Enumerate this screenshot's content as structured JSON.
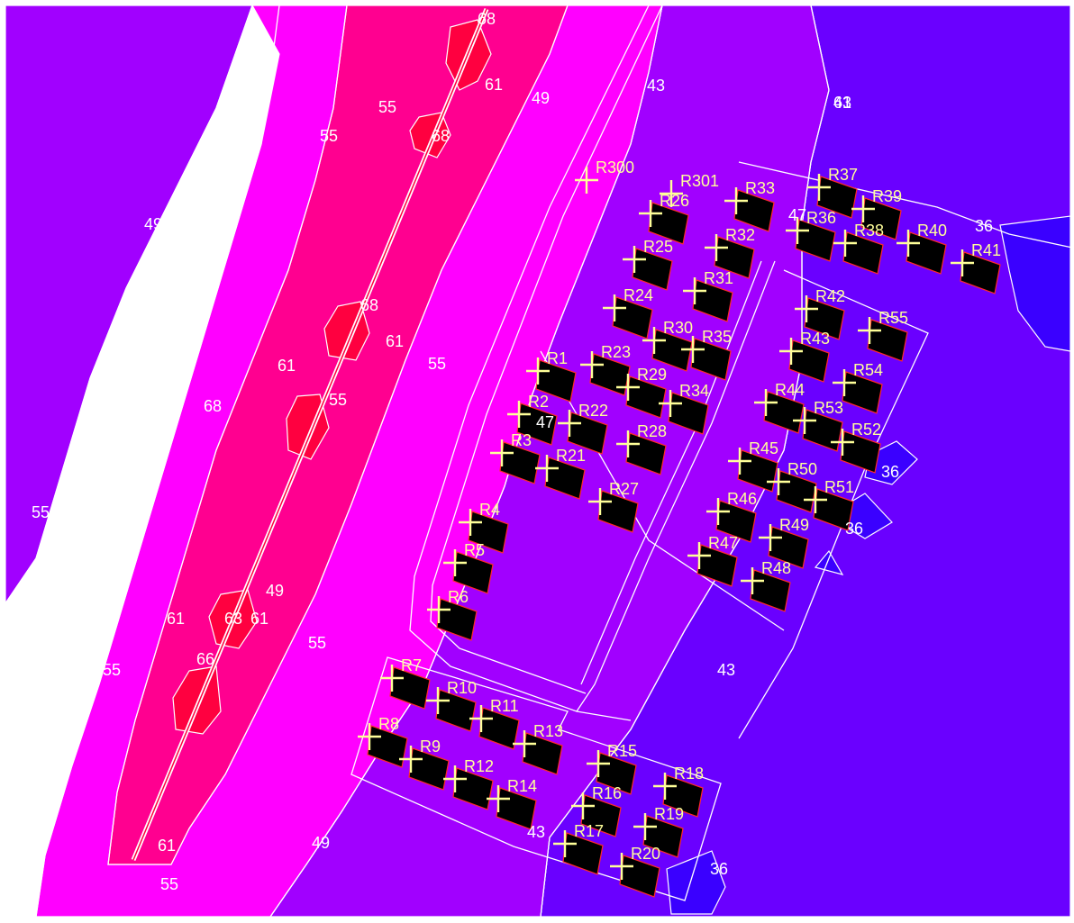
{
  "map": {
    "colors": {
      "zone_36": "#3a00ff",
      "zone_43": "#6a00ff",
      "zone_49": "#a100ff",
      "zone_55": "#ff00ff",
      "zone_61": "#ff0090",
      "zone_68": "#ff0040",
      "building_fill": "#000000",
      "building_outline": "#ff2a2a",
      "receptor_marker": "#ffff99",
      "contour_line": "#ffffff"
    },
    "contour_labels": [
      "68",
      "61",
      "55",
      "49",
      "43",
      "61",
      "68",
      "55",
      "49",
      "68",
      "61",
      "61",
      "55",
      "55",
      "68",
      "55",
      "49",
      "61",
      "61",
      "63",
      "55",
      "66",
      "55",
      "61",
      "55",
      "49",
      "43",
      "36",
      "36",
      "43",
      "36",
      "43",
      "47",
      "47",
      "36"
    ],
    "receptors": [
      "R300",
      "R301",
      "R26",
      "R33",
      "R37",
      "R39",
      "R36",
      "R38",
      "R40",
      "R41",
      "R25",
      "R32",
      "R31",
      "R24",
      "R30",
      "R35",
      "R42",
      "R55",
      "R43",
      "R54",
      "R1",
      "R23",
      "R29",
      "R34",
      "R44",
      "R53",
      "R2",
      "R22",
      "R28",
      "R52",
      "R3",
      "R21",
      "R27",
      "R45",
      "R50",
      "R51",
      "R46",
      "R49",
      "R4",
      "R5",
      "R47",
      "R48",
      "R6",
      "R7",
      "R10",
      "R11",
      "R13",
      "R8",
      "R9",
      "R12",
      "R14",
      "R15",
      "R18",
      "R16",
      "R19",
      "R17",
      "R20"
    ]
  }
}
